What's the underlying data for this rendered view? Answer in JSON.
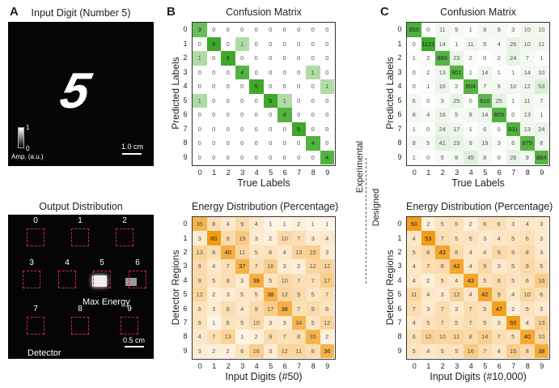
{
  "panel_a": {
    "letter": "A",
    "title": "Input Digit (Number 5)",
    "digit": "5",
    "colorbar_max": "1",
    "colorbar_min": "0",
    "colorbar_label": "Amp. (a.u.)",
    "scale_bar": "1.0 cm"
  },
  "output": {
    "title": "Output Distribution",
    "regions": [
      "0",
      "1",
      "2",
      "3",
      "4",
      "5",
      "6",
      "7",
      "8",
      "9"
    ],
    "max_label": "Max Energy",
    "detector_label": "Detector",
    "scale_bar": "0.5 cm"
  },
  "panel_b": {
    "letter": "B"
  },
  "panel_c": {
    "letter": "C"
  },
  "middle": {
    "top": "Experimental",
    "bottom": "Designed"
  },
  "chart_data": [
    {
      "type": "heatmap",
      "title": "Confusion Matrix",
      "xlabel": "True Labels",
      "ylabel": "Predicted Labels",
      "colormap": "#3ea82a",
      "categories": [
        "0",
        "1",
        "2",
        "3",
        "4",
        "5",
        "6",
        "7",
        "8",
        "9"
      ],
      "values": [
        [
          3,
          0,
          0,
          0,
          0,
          0,
          0,
          0,
          0,
          0
        ],
        [
          0,
          5,
          0,
          1,
          0,
          0,
          0,
          0,
          0,
          0
        ],
        [
          1,
          0,
          5,
          0,
          0,
          0,
          0,
          0,
          0,
          0
        ],
        [
          0,
          0,
          0,
          4,
          0,
          0,
          0,
          0,
          1,
          0
        ],
        [
          0,
          0,
          0,
          0,
          5,
          0,
          0,
          0,
          0,
          1
        ],
        [
          1,
          0,
          0,
          0,
          0,
          5,
          1,
          0,
          0,
          0
        ],
        [
          0,
          0,
          0,
          0,
          0,
          0,
          4,
          0,
          0,
          0
        ],
        [
          0,
          0,
          0,
          0,
          0,
          0,
          0,
          5,
          0,
          0
        ],
        [
          0,
          0,
          0,
          0,
          0,
          0,
          0,
          0,
          4,
          0
        ],
        [
          0,
          0,
          0,
          0,
          0,
          0,
          0,
          0,
          0,
          4
        ]
      ]
    },
    {
      "type": "heatmap",
      "title": "Energy Distribution (Percentage)",
      "xlabel": "Input Digits (#50)",
      "ylabel": "Detector Regions",
      "colormap": "#f39a12",
      "categories": [
        "0",
        "1",
        "2",
        "3",
        "4",
        "5",
        "6",
        "7",
        "8",
        "9"
      ],
      "values": [
        [
          35,
          8,
          4,
          9,
          4,
          1,
          1,
          2,
          1,
          1
        ],
        [
          3,
          60,
          9,
          19,
          3,
          2,
          10,
          7,
          3,
          4
        ],
        [
          13,
          8,
          40,
          11,
          5,
          6,
          4,
          13,
          15,
          3
        ],
        [
          9,
          4,
          7,
          37,
          7,
          16,
          3,
          2,
          12,
          12
        ],
        [
          9,
          5,
          8,
          3,
          39,
          5,
          10,
          7,
          7,
          17
        ],
        [
          12,
          2,
          3,
          5,
          5,
          38,
          12,
          9,
          5,
          7
        ],
        [
          6,
          3,
          8,
          4,
          9,
          17,
          38,
          7,
          9,
          6
        ],
        [
          6,
          1,
          6,
          5,
          10,
          3,
          3,
          34,
          5,
          12
        ],
        [
          4,
          7,
          13,
          1,
          2,
          9,
          7,
          8,
          35,
          2
        ],
        [
          3,
          2,
          2,
          6,
          16,
          3,
          12,
          11,
          8,
          36
        ]
      ]
    },
    {
      "type": "heatmap",
      "title": "Confusion Matrix",
      "xlabel": "True Labels",
      "ylabel": "Predicted Labels",
      "colormap": "#3ea82a",
      "categories": [
        "0",
        "1",
        "2",
        "3",
        "4",
        "5",
        "6",
        "7",
        "8",
        "9"
      ],
      "values": [
        [
          955,
          0,
          11,
          5,
          1,
          9,
          9,
          3,
          10,
          10
        ],
        [
          0,
          1121,
          14,
          1,
          11,
          5,
          4,
          26,
          10,
          11
        ],
        [
          1,
          2,
          889,
          23,
          2,
          0,
          2,
          24,
          7,
          1
        ],
        [
          0,
          2,
          13,
          901,
          1,
          14,
          1,
          1,
          14,
          10
        ],
        [
          0,
          1,
          16,
          2,
          904,
          7,
          9,
          10,
          12,
          53
        ],
        [
          6,
          0,
          3,
          25,
          0,
          810,
          25,
          1,
          11,
          7
        ],
        [
          8,
          4,
          16,
          5,
          8,
          14,
          905,
          0,
          13,
          1
        ],
        [
          1,
          0,
          24,
          17,
          1,
          6,
          0,
          931,
          13,
          24
        ],
        [
          8,
          5,
          41,
          23,
          9,
          19,
          3,
          6,
          875,
          8
        ],
        [
          1,
          0,
          5,
          8,
          45,
          8,
          0,
          26,
          9,
          884
        ]
      ]
    },
    {
      "type": "heatmap",
      "title": "Energy Distribution (Percentage)",
      "xlabel": "Input Digits (#10,000)",
      "ylabel": "Detector Regions",
      "colormap": "#f39a12",
      "categories": [
        "0",
        "1",
        "2",
        "3",
        "4",
        "5",
        "6",
        "7",
        "8",
        "9"
      ],
      "values": [
        [
          50,
          2,
          5,
          5,
          2,
          6,
          6,
          3,
          4,
          3
        ],
        [
          4,
          53,
          7,
          5,
          5,
          3,
          4,
          5,
          6,
          3
        ],
        [
          5,
          8,
          43,
          8,
          4,
          4,
          9,
          6,
          8,
          3
        ],
        [
          4,
          7,
          8,
          42,
          4,
          9,
          3,
          5,
          9,
          5
        ],
        [
          4,
          2,
          5,
          4,
          43,
          5,
          8,
          5,
          6,
          16
        ],
        [
          11,
          4,
          3,
          12,
          4,
          42,
          9,
          4,
          10,
          6
        ],
        [
          7,
          3,
          7,
          3,
          7,
          5,
          47,
          2,
          5,
          3
        ],
        [
          4,
          5,
          7,
          5,
          7,
          5,
          3,
          50,
          4,
          13
        ],
        [
          6,
          12,
          10,
          11,
          8,
          14,
          7,
          5,
          40,
          10
        ],
        [
          5,
          4,
          5,
          5,
          16,
          7,
          4,
          15,
          8,
          38
        ]
      ]
    }
  ]
}
